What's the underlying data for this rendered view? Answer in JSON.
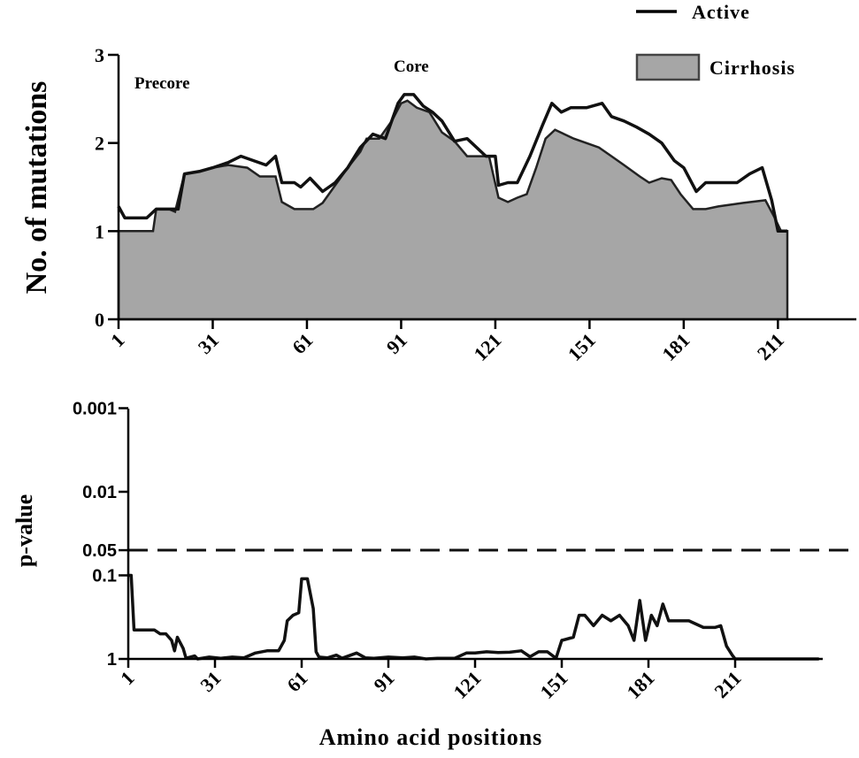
{
  "chart_data": [
    {
      "type": "area",
      "panel": "top",
      "ylabel": "No. of mutations",
      "xlabel": "",
      "xticks": [
        1,
        31,
        61,
        91,
        121,
        151,
        181,
        211
      ],
      "yticks": [
        0,
        1,
        2,
        3
      ],
      "ylim": [
        0,
        3
      ],
      "xlim": [
        1,
        241
      ],
      "annotations": [
        "Precore",
        "Core"
      ],
      "legend": {
        "placement": "top-right",
        "entries": [
          {
            "name": "Active",
            "kind": "line"
          },
          {
            "name": "Cirrhosis",
            "kind": "area"
          }
        ]
      },
      "series": [
        {
          "name": "Cirrhosis",
          "kind": "area",
          "color": "#a6a6a6",
          "points": [
            [
              1,
              1.0
            ],
            [
              12,
              1.0
            ],
            [
              13,
              1.25
            ],
            [
              17,
              1.25
            ],
            [
              19,
              1.22
            ],
            [
              22,
              1.65
            ],
            [
              27,
              1.68
            ],
            [
              31,
              1.72
            ],
            [
              36,
              1.75
            ],
            [
              42,
              1.72
            ],
            [
              46,
              1.62
            ],
            [
              51,
              1.62
            ],
            [
              53,
              1.33
            ],
            [
              57,
              1.25
            ],
            [
              63,
              1.25
            ],
            [
              66,
              1.32
            ],
            [
              70,
              1.52
            ],
            [
              74,
              1.72
            ],
            [
              78,
              1.9
            ],
            [
              80,
              2.05
            ],
            [
              84,
              2.05
            ],
            [
              88,
              2.25
            ],
            [
              91,
              2.45
            ],
            [
              93,
              2.48
            ],
            [
              96,
              2.4
            ],
            [
              100,
              2.35
            ],
            [
              104,
              2.12
            ],
            [
              108,
              2.02
            ],
            [
              112,
              1.85
            ],
            [
              119,
              1.85
            ],
            [
              122,
              1.38
            ],
            [
              125,
              1.33
            ],
            [
              128,
              1.38
            ],
            [
              131,
              1.42
            ],
            [
              134,
              1.72
            ],
            [
              137,
              2.05
            ],
            [
              140,
              2.15
            ],
            [
              143,
              2.1
            ],
            [
              146,
              2.05
            ],
            [
              150,
              2.0
            ],
            [
              154,
              1.95
            ],
            [
              158,
              1.85
            ],
            [
              162,
              1.75
            ],
            [
              167,
              1.62
            ],
            [
              170,
              1.55
            ],
            [
              174,
              1.6
            ],
            [
              177,
              1.58
            ],
            [
              180,
              1.42
            ],
            [
              184,
              1.25
            ],
            [
              188,
              1.25
            ],
            [
              192,
              1.28
            ],
            [
              200,
              1.32
            ],
            [
              207,
              1.35
            ],
            [
              210,
              1.15
            ],
            [
              212,
              1.0
            ],
            [
              214,
              1.0
            ]
          ]
        },
        {
          "name": "Active",
          "kind": "line",
          "color": "#000000",
          "points": [
            [
              1,
              1.28
            ],
            [
              3,
              1.15
            ],
            [
              10,
              1.15
            ],
            [
              13,
              1.25
            ],
            [
              20,
              1.25
            ],
            [
              22,
              1.65
            ],
            [
              27,
              1.68
            ],
            [
              31,
              1.72
            ],
            [
              36,
              1.78
            ],
            [
              40,
              1.85
            ],
            [
              44,
              1.8
            ],
            [
              48,
              1.75
            ],
            [
              51,
              1.85
            ],
            [
              53,
              1.55
            ],
            [
              57,
              1.55
            ],
            [
              59,
              1.5
            ],
            [
              62,
              1.6
            ],
            [
              66,
              1.45
            ],
            [
              70,
              1.55
            ],
            [
              74,
              1.72
            ],
            [
              78,
              1.95
            ],
            [
              82,
              2.1
            ],
            [
              86,
              2.05
            ],
            [
              90,
              2.45
            ],
            [
              92,
              2.55
            ],
            [
              95,
              2.55
            ],
            [
              98,
              2.42
            ],
            [
              101,
              2.35
            ],
            [
              104,
              2.25
            ],
            [
              108,
              2.02
            ],
            [
              112,
              2.05
            ],
            [
              118,
              1.85
            ],
            [
              121,
              1.85
            ],
            [
              122,
              1.52
            ],
            [
              125,
              1.55
            ],
            [
              128,
              1.55
            ],
            [
              132,
              1.85
            ],
            [
              136,
              2.2
            ],
            [
              139,
              2.45
            ],
            [
              142,
              2.35
            ],
            [
              145,
              2.4
            ],
            [
              150,
              2.4
            ],
            [
              155,
              2.45
            ],
            [
              158,
              2.3
            ],
            [
              162,
              2.25
            ],
            [
              166,
              2.18
            ],
            [
              170,
              2.1
            ],
            [
              174,
              2.0
            ],
            [
              178,
              1.8
            ],
            [
              181,
              1.72
            ],
            [
              185,
              1.45
            ],
            [
              188,
              1.55
            ],
            [
              198,
              1.55
            ],
            [
              202,
              1.65
            ],
            [
              206,
              1.72
            ],
            [
              209,
              1.35
            ],
            [
              211,
              1.0
            ],
            [
              214,
              1.0
            ]
          ]
        }
      ]
    },
    {
      "type": "line",
      "panel": "bottom",
      "ylabel": "p-value",
      "xlabel": "Amino acid positions",
      "xticks": [
        1,
        31,
        61,
        91,
        121,
        151,
        181,
        211
      ],
      "yticks": [
        "0.001",
        "0.01",
        "0.05",
        "0.1",
        "1"
      ],
      "ytick_values": [
        0.001,
        0.01,
        0.05,
        0.1,
        1
      ],
      "yscale": "log (inverted)",
      "xlim": [
        1,
        241
      ],
      "threshold": {
        "value": 0.05,
        "style": "dashed"
      },
      "series": [
        {
          "name": "p-value",
          "color": "#000000",
          "points": [
            [
              1,
              0.1
            ],
            [
              2,
              0.1
            ],
            [
              3,
              0.45
            ],
            [
              10,
              0.45
            ],
            [
              12,
              0.5
            ],
            [
              14,
              0.5
            ],
            [
              16,
              0.6
            ],
            [
              17,
              0.8
            ],
            [
              18,
              0.55
            ],
            [
              20,
              0.75
            ],
            [
              21,
              0.98
            ],
            [
              24,
              0.92
            ],
            [
              25,
              1.0
            ],
            [
              29,
              0.95
            ],
            [
              33,
              0.98
            ],
            [
              37,
              0.95
            ],
            [
              41,
              0.97
            ],
            [
              45,
              0.85
            ],
            [
              49,
              0.8
            ],
            [
              53,
              0.8
            ],
            [
              55,
              0.6
            ],
            [
              56,
              0.35
            ],
            [
              58,
              0.3
            ],
            [
              60,
              0.28
            ],
            [
              61,
              0.11
            ],
            [
              63,
              0.11
            ],
            [
              65,
              0.25
            ],
            [
              66,
              0.82
            ],
            [
              67,
              0.95
            ],
            [
              70,
              0.97
            ],
            [
              73,
              0.9
            ],
            [
              75,
              0.98
            ],
            [
              80,
              0.85
            ],
            [
              83,
              0.97
            ],
            [
              86,
              0.98
            ],
            [
              91,
              0.95
            ],
            [
              96,
              0.97
            ],
            [
              100,
              0.95
            ],
            [
              104,
              1.0
            ],
            [
              108,
              0.98
            ],
            [
              114,
              0.98
            ],
            [
              118,
              0.85
            ],
            [
              121,
              0.85
            ],
            [
              125,
              0.82
            ],
            [
              129,
              0.84
            ],
            [
              133,
              0.83
            ],
            [
              137,
              0.8
            ],
            [
              140,
              0.94
            ],
            [
              143,
              0.82
            ],
            [
              146,
              0.82
            ],
            [
              149,
              0.98
            ],
            [
              151,
              0.6
            ],
            [
              155,
              0.55
            ],
            [
              157,
              0.3
            ],
            [
              159,
              0.3
            ],
            [
              162,
              0.4
            ],
            [
              165,
              0.3
            ],
            [
              168,
              0.35
            ],
            [
              171,
              0.3
            ],
            [
              174,
              0.4
            ],
            [
              176,
              0.6
            ],
            [
              178,
              0.2
            ],
            [
              180,
              0.6
            ],
            [
              182,
              0.3
            ],
            [
              184,
              0.4
            ],
            [
              186,
              0.22
            ],
            [
              188,
              0.35
            ],
            [
              195,
              0.35
            ],
            [
              200,
              0.42
            ],
            [
              204,
              0.42
            ],
            [
              206,
              0.4
            ],
            [
              208,
              0.7
            ],
            [
              210,
              0.9
            ],
            [
              211,
              1.0
            ],
            [
              213,
              1.0
            ],
            [
              240,
              1.0
            ]
          ]
        }
      ]
    }
  ]
}
